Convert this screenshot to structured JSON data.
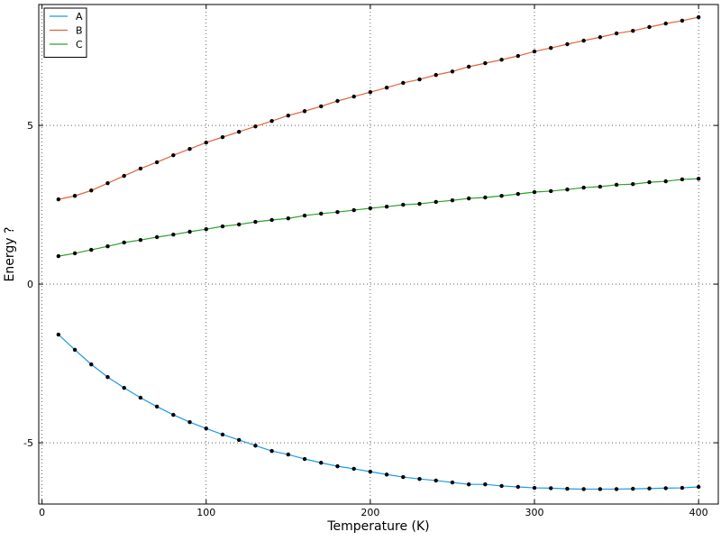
{
  "chart_data": {
    "type": "line",
    "x_label": "Temperature (K)",
    "y_label": "Energy ?",
    "x": [
      10,
      20,
      30,
      40,
      50,
      60,
      70,
      80,
      90,
      100,
      110,
      120,
      130,
      140,
      150,
      160,
      170,
      180,
      190,
      200,
      210,
      220,
      230,
      240,
      250,
      260,
      270,
      280,
      290,
      300,
      310,
      320,
      330,
      340,
      350,
      360,
      370,
      380,
      390,
      400
    ],
    "series": [
      {
        "name": "A",
        "color": "#1a9be6",
        "values": [
          -1.59,
          -2.07,
          -2.53,
          -2.93,
          -3.27,
          -3.58,
          -3.86,
          -4.12,
          -4.35,
          -4.55,
          -4.74,
          -4.91,
          -5.09,
          -5.26,
          -5.37,
          -5.51,
          -5.63,
          -5.74,
          -5.82,
          -5.91,
          -6.0,
          -6.08,
          -6.14,
          -6.19,
          -6.25,
          -6.31,
          -6.31,
          -6.36,
          -6.39,
          -6.42,
          -6.43,
          -6.45,
          -6.46,
          -6.46,
          -6.46,
          -6.45,
          -6.44,
          -6.43,
          -6.42,
          -6.39
        ]
      },
      {
        "name": "B",
        "color": "#e0643a",
        "values": [
          2.67,
          2.78,
          2.95,
          3.18,
          3.41,
          3.64,
          3.84,
          4.06,
          4.26,
          4.46,
          4.63,
          4.8,
          4.97,
          5.14,
          5.31,
          5.45,
          5.6,
          5.77,
          5.91,
          6.05,
          6.19,
          6.34,
          6.45,
          6.59,
          6.7,
          6.85,
          6.96,
          7.07,
          7.19,
          7.33,
          7.44,
          7.56,
          7.67,
          7.78,
          7.9,
          7.98,
          8.1,
          8.21,
          8.3,
          8.41
        ]
      },
      {
        "name": "C",
        "color": "#2ca02c",
        "values": [
          0.88,
          0.97,
          1.08,
          1.19,
          1.31,
          1.39,
          1.48,
          1.56,
          1.65,
          1.73,
          1.82,
          1.88,
          1.96,
          2.02,
          2.07,
          2.16,
          2.22,
          2.27,
          2.33,
          2.39,
          2.44,
          2.5,
          2.53,
          2.59,
          2.64,
          2.7,
          2.73,
          2.78,
          2.84,
          2.9,
          2.93,
          2.98,
          3.04,
          3.07,
          3.13,
          3.15,
          3.21,
          3.24,
          3.3,
          3.32
        ]
      }
    ],
    "marker_color": "#000000",
    "xlim": [
      -2,
      412
    ],
    "ylim": [
      -6.93,
      8.81
    ],
    "xticks": [
      0,
      100,
      200,
      300,
      400
    ],
    "yticks": [
      -5,
      0,
      5
    ],
    "grid": true,
    "legend": "upper-left"
  }
}
